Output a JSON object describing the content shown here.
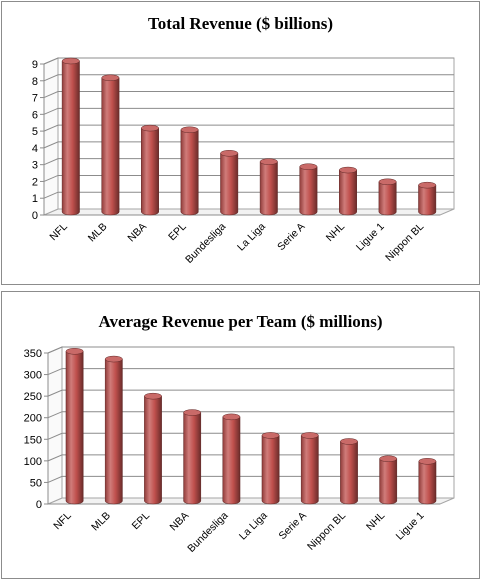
{
  "chart_data": [
    {
      "type": "bar",
      "title": "Total Revenue ($ billions)",
      "categories": [
        "NFL",
        "MLB",
        "NBA",
        "EPL",
        "Bundesliga",
        "La Liga",
        "Serie A",
        "NHL",
        "Ligue 1",
        "Nippon BL"
      ],
      "values": [
        9.0,
        8.0,
        5.0,
        4.9,
        3.5,
        3.0,
        2.7,
        2.5,
        1.8,
        1.6
      ],
      "yticks": [
        "0",
        "1",
        "2",
        "3",
        "4",
        "5",
        "6",
        "7",
        "8",
        "9"
      ],
      "ylim": [
        0,
        9
      ],
      "grid": true,
      "legend": "none",
      "bar_color": "#c0504d"
    },
    {
      "type": "bar",
      "title": "Average Revenue per Team ($ millions)",
      "categories": [
        "NFL",
        "MLB",
        "EPL",
        "NBA",
        "Bundesliga",
        "La Liga",
        "Serie A",
        "Nippon BL",
        "NHL",
        "Ligue 1"
      ],
      "values": [
        347,
        329,
        243,
        205,
        195,
        152,
        152,
        138,
        98,
        92
      ],
      "yticks": [
        "0",
        "50",
        "100",
        "150",
        "200",
        "250",
        "300",
        "350"
      ],
      "ylim": [
        0,
        350
      ],
      "grid": true,
      "legend": "none",
      "bar_color": "#c0504d"
    }
  ]
}
